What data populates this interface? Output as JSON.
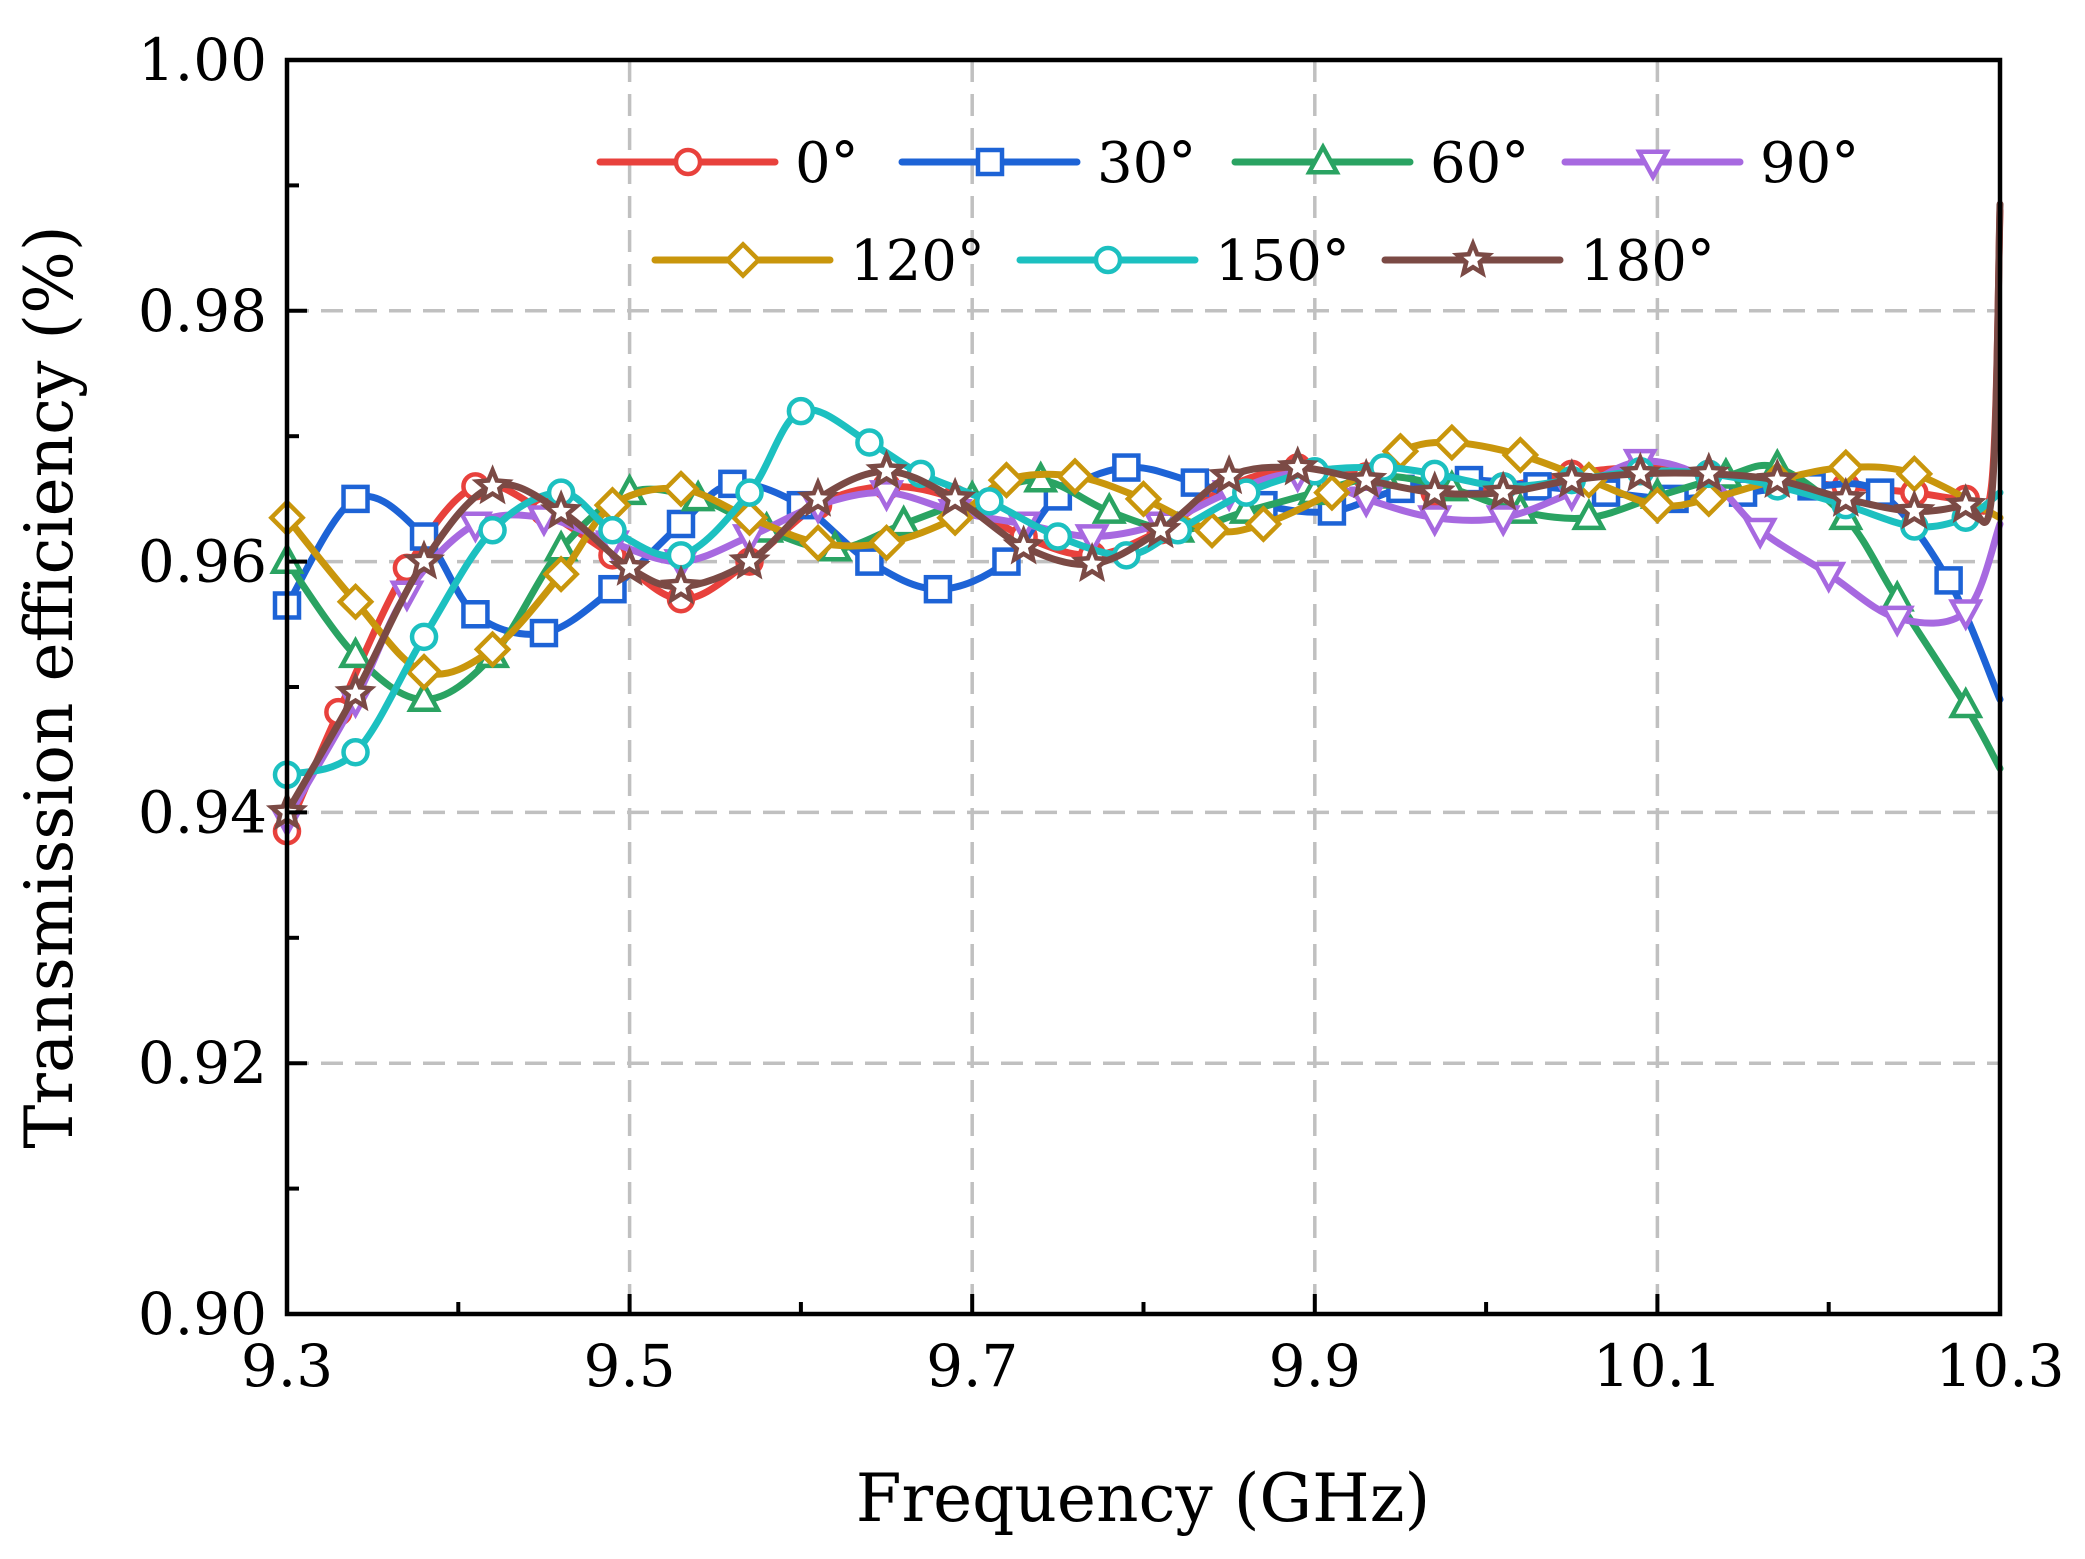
{
  "chart_data": {
    "type": "line",
    "xlabel": "Frequency (GHz)",
    "ylabel": "Transmission efficiency (%)",
    "xlim": [
      9.3,
      10.3
    ],
    "ylim": [
      0.9,
      1.0
    ],
    "xticks": [
      "9.3",
      "9.5",
      "9.7",
      "9.9",
      "10.1",
      "10.3"
    ],
    "yticks": [
      "0.90",
      "0.92",
      "0.94",
      "0.96",
      "0.98",
      "1.00"
    ],
    "grid": true,
    "legend_position": "top",
    "series": [
      {
        "name": "0°",
        "color": "#e8413c",
        "marker": "circle",
        "x": [
          9.3,
          9.33,
          9.37,
          9.41,
          9.45,
          9.49,
          9.53,
          9.57,
          9.61,
          9.65,
          9.69,
          9.73,
          9.77,
          9.81,
          9.85,
          9.89,
          9.93,
          9.97,
          10.01,
          10.05,
          10.09,
          10.13,
          10.17,
          10.21,
          10.25,
          10.28,
          10.295,
          10.3
        ],
        "y": [
          0.9385,
          0.948,
          0.9595,
          0.966,
          0.964,
          0.9605,
          0.957,
          0.96,
          0.9645,
          0.966,
          0.965,
          0.962,
          0.9605,
          0.9625,
          0.966,
          0.9675,
          0.9668,
          0.9655,
          0.966,
          0.967,
          0.9675,
          0.967,
          0.9665,
          0.966,
          0.9655,
          0.965,
          0.966,
          0.988
        ]
      },
      {
        "name": "30°",
        "color": "#1d63d6",
        "marker": "square",
        "x": [
          9.3,
          9.34,
          9.38,
          9.41,
          9.45,
          9.49,
          9.53,
          9.56,
          9.6,
          9.64,
          9.68,
          9.72,
          9.75,
          9.79,
          9.83,
          9.87,
          9.91,
          9.95,
          9.99,
          10.03,
          10.07,
          10.11,
          10.15,
          10.19,
          10.23,
          10.27,
          10.3
        ],
        "y": [
          0.9565,
          0.965,
          0.962,
          0.9558,
          0.9543,
          0.9578,
          0.963,
          0.9662,
          0.9645,
          0.96,
          0.9578,
          0.96,
          0.9652,
          0.9675,
          0.9663,
          0.9645,
          0.964,
          0.9658,
          0.9665,
          0.966,
          0.9655,
          0.965,
          0.9655,
          0.966,
          0.9655,
          0.9585,
          0.949
        ]
      },
      {
        "name": "60°",
        "color": "#2aa362",
        "marker": "triangle-up",
        "x": [
          9.3,
          9.34,
          9.38,
          9.42,
          9.46,
          9.5,
          9.54,
          9.58,
          9.62,
          9.66,
          9.7,
          9.74,
          9.78,
          9.82,
          9.86,
          9.9,
          9.94,
          9.98,
          10.02,
          10.06,
          10.1,
          10.14,
          10.17,
          10.21,
          10.24,
          10.28,
          10.3
        ],
        "y": [
          0.96,
          0.9525,
          0.949,
          0.9525,
          0.961,
          0.9655,
          0.965,
          0.9625,
          0.961,
          0.963,
          0.965,
          0.9665,
          0.964,
          0.9625,
          0.964,
          0.9655,
          0.9668,
          0.9658,
          0.964,
          0.9635,
          0.9652,
          0.9668,
          0.9675,
          0.9635,
          0.957,
          0.9485,
          0.9435
        ]
      },
      {
        "name": "90°",
        "color": "#a769e0",
        "marker": "triangle-down",
        "x": [
          9.3,
          9.34,
          9.37,
          9.41,
          9.45,
          9.49,
          9.53,
          9.57,
          9.61,
          9.65,
          9.69,
          9.73,
          9.77,
          9.81,
          9.85,
          9.89,
          9.93,
          9.97,
          10.01,
          10.05,
          10.09,
          10.13,
          10.16,
          10.2,
          10.24,
          10.28,
          10.3
        ],
        "y": [
          0.9395,
          0.949,
          0.9575,
          0.963,
          0.9635,
          0.9615,
          0.96,
          0.962,
          0.9645,
          0.9655,
          0.964,
          0.963,
          0.962,
          0.963,
          0.9655,
          0.967,
          0.965,
          0.9635,
          0.9635,
          0.9655,
          0.968,
          0.9665,
          0.9625,
          0.959,
          0.9555,
          0.956,
          0.963
        ]
      },
      {
        "name": "120°",
        "color": "#c9960c",
        "marker": "diamond",
        "x": [
          9.3,
          9.34,
          9.38,
          9.42,
          9.46,
          9.49,
          9.53,
          9.57,
          9.61,
          9.65,
          9.69,
          9.72,
          9.76,
          9.8,
          9.84,
          9.87,
          9.91,
          9.95,
          9.98,
          10.02,
          10.06,
          10.1,
          10.13,
          10.17,
          10.21,
          10.25,
          10.3
        ],
        "y": [
          0.9635,
          0.9568,
          0.9512,
          0.953,
          0.959,
          0.9645,
          0.9658,
          0.9635,
          0.9615,
          0.9615,
          0.9635,
          0.9665,
          0.9668,
          0.965,
          0.9625,
          0.963,
          0.9655,
          0.9688,
          0.9695,
          0.9685,
          0.9665,
          0.9645,
          0.965,
          0.9665,
          0.9675,
          0.967,
          0.9635
        ]
      },
      {
        "name": "150°",
        "color": "#1cc0c0",
        "marker": "circle",
        "x": [
          9.3,
          9.34,
          9.38,
          9.42,
          9.46,
          9.49,
          9.53,
          9.57,
          9.6,
          9.64,
          9.67,
          9.71,
          9.75,
          9.79,
          9.82,
          9.86,
          9.9,
          9.94,
          9.97,
          10.01,
          10.05,
          10.09,
          10.13,
          10.17,
          10.21,
          10.25,
          10.28,
          10.3
        ],
        "y": [
          0.943,
          0.9448,
          0.954,
          0.9625,
          0.9655,
          0.9625,
          0.9605,
          0.9655,
          0.972,
          0.9695,
          0.967,
          0.9648,
          0.962,
          0.9605,
          0.9625,
          0.9655,
          0.9672,
          0.9675,
          0.967,
          0.966,
          0.9665,
          0.9672,
          0.967,
          0.966,
          0.9645,
          0.9628,
          0.9635,
          0.9655
        ]
      },
      {
        "name": "180°",
        "color": "#7b4a45",
        "marker": "star",
        "x": [
          9.3,
          9.34,
          9.38,
          9.42,
          9.46,
          9.5,
          9.53,
          9.57,
          9.61,
          9.65,
          9.69,
          9.73,
          9.77,
          9.81,
          9.85,
          9.89,
          9.93,
          9.97,
          10.01,
          10.05,
          10.09,
          10.13,
          10.17,
          10.21,
          10.25,
          10.28,
          10.295,
          10.3
        ],
        "y": [
          0.94,
          0.9495,
          0.96,
          0.966,
          0.964,
          0.9595,
          0.958,
          0.96,
          0.965,
          0.9672,
          0.965,
          0.9612,
          0.9598,
          0.9625,
          0.9668,
          0.9675,
          0.9665,
          0.9655,
          0.9655,
          0.9665,
          0.967,
          0.967,
          0.9665,
          0.965,
          0.964,
          0.9645,
          0.965,
          0.9885
        ]
      }
    ]
  }
}
